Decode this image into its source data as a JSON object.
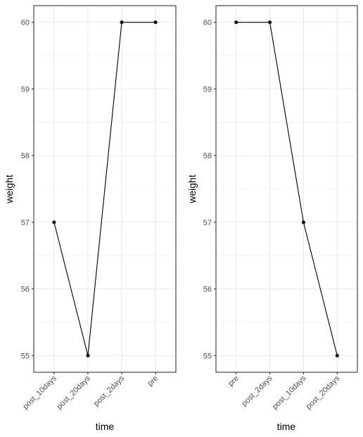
{
  "chart_data": [
    {
      "type": "line",
      "xlabel": "time",
      "ylabel": "weight",
      "categories": [
        "post_10days",
        "post_20days",
        "post_2days",
        "pre"
      ],
      "values": [
        57,
        55,
        60,
        60
      ],
      "yticks": [
        "55",
        "56",
        "57",
        "58",
        "59",
        "60"
      ],
      "ylim": [
        54.75,
        60.25
      ],
      "grid": true,
      "x_tick_rotation_deg": 45
    },
    {
      "type": "line",
      "xlabel": "time",
      "ylabel": "weight",
      "categories": [
        "pre",
        "post_2days",
        "post_10days",
        "post_20days"
      ],
      "values": [
        60,
        60,
        57,
        55
      ],
      "yticks": [
        "55",
        "56",
        "57",
        "58",
        "59",
        "60"
      ],
      "ylim": [
        54.75,
        60.25
      ],
      "grid": true,
      "x_tick_rotation_deg": 45
    }
  ],
  "colors": {
    "line": "#000000",
    "point": "#000000",
    "grid": "#ebebeb",
    "panel_border": "#333333",
    "tick_text": "#4d4d4d",
    "title_text": "#000000"
  }
}
